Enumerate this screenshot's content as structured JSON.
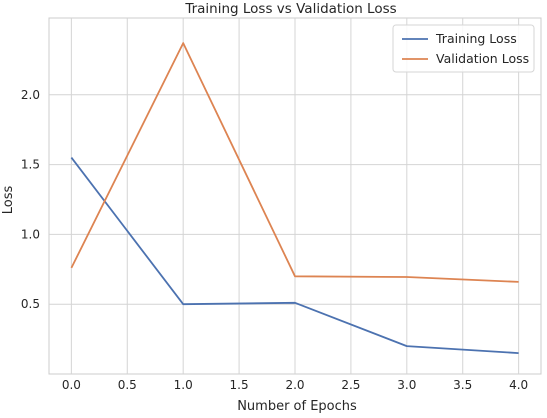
{
  "chart_data": {
    "type": "line",
    "title": "Training Loss vs Validation Loss",
    "xlabel": "Number of Epochs",
    "ylabel": "Loss",
    "x": [
      0,
      1,
      2,
      3,
      4
    ],
    "xlim": [
      -0.2,
      4.2
    ],
    "ylim": [
      0.0,
      2.55
    ],
    "xticks": [
      "0.0",
      "0.5",
      "1.0",
      "1.5",
      "2.0",
      "2.5",
      "3.0",
      "3.5",
      "4.0"
    ],
    "yticks": [
      "0.5",
      "1.0",
      "1.5",
      "2.0"
    ],
    "grid": true,
    "legend_position": "top-right",
    "series": [
      {
        "name": "Training Loss",
        "color": "#4c72b0",
        "values": [
          1.55,
          0.5,
          0.51,
          0.2,
          0.15
        ]
      },
      {
        "name": "Validation Loss",
        "color": "#dd8452",
        "values": [
          0.76,
          2.37,
          0.7,
          0.695,
          0.66
        ]
      }
    ]
  }
}
